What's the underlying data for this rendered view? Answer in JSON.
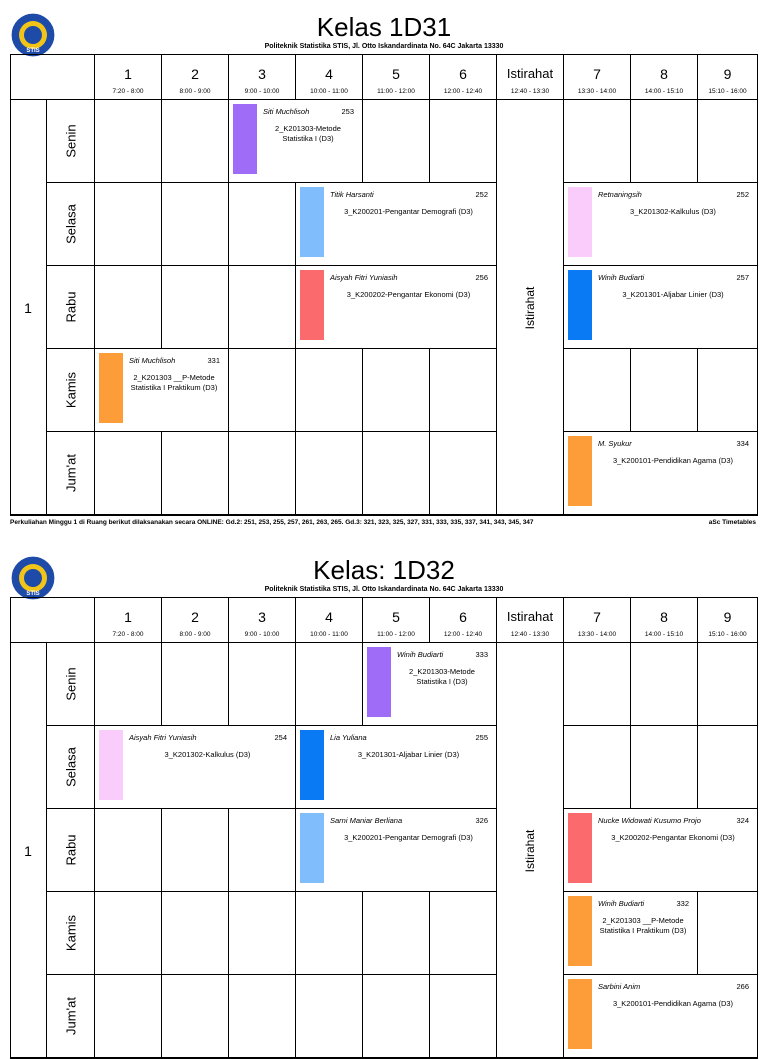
{
  "logo": {
    "text": "STIS",
    "colors": {
      "outer": "#1e4aa8",
      "inner": "#f2c418",
      "ring": "#ffffff"
    }
  },
  "timetables": [
    {
      "title": "Kelas 1D31",
      "subtitle": "Politeknik Statistika STIS, Jl. Otto Iskandardinata No. 64C Jakarta 13330",
      "group": "1",
      "periods": [
        {
          "num": "1",
          "time": "7:20 - 8:00"
        },
        {
          "num": "2",
          "time": "8:00 - 9:00"
        },
        {
          "num": "3",
          "time": "9:00 - 10:00"
        },
        {
          "num": "4",
          "time": "10:00 - 11:00"
        },
        {
          "num": "5",
          "time": "11:00 - 12:00"
        },
        {
          "num": "6",
          "time": "12:00 - 12:40"
        },
        {
          "num": "Istirahat",
          "time": "12:40 - 13:30"
        },
        {
          "num": "7",
          "time": "13:30 - 14:00"
        },
        {
          "num": "8",
          "time": "14:00 - 15:10"
        },
        {
          "num": "9",
          "time": "15:10 - 16:00"
        }
      ],
      "days": [
        "Senin",
        "Selasa",
        "Rabu",
        "Kamis",
        "Jum'at"
      ],
      "break_label": "Istirahat",
      "lessons": [
        {
          "day": 0,
          "start": 2,
          "span": 2,
          "teacher": "Siti Muchlisoh",
          "room": "253",
          "subject": "2_K201303-Metode Statistika I (D3)",
          "color": "#9e6cf6"
        },
        {
          "day": 1,
          "start": 3,
          "span": 3,
          "teacher": "Titik Harsanti",
          "room": "252",
          "subject": "3_K200201-Pengantar Demografi (D3)",
          "color": "#80bdfc"
        },
        {
          "day": 1,
          "start": 7,
          "span": 3,
          "teacher": "Retnaningsih",
          "room": "252",
          "subject": "3_K201302-Kalkulus (D3)",
          "color": "#f9ccfb"
        },
        {
          "day": 2,
          "start": 3,
          "span": 3,
          "teacher": "Aisyah Fitri Yuniasih",
          "room": "256",
          "subject": "3_K200202-Pengantar Ekonomi (D3)",
          "color": "#fb6a6c"
        },
        {
          "day": 2,
          "start": 7,
          "span": 3,
          "teacher": "Winih Budiarti",
          "room": "257",
          "subject": "3_K201301-Aljabar Linier (D3)",
          "color": "#0a7af4"
        },
        {
          "day": 3,
          "start": 0,
          "span": 2,
          "teacher": "Siti Muchlisoh",
          "room": "331",
          "subject": "2_K201303 __P-Metode Statistika I Praktikum (D3)",
          "color": "#fc9d3a"
        },
        {
          "day": 4,
          "start": 7,
          "span": 3,
          "teacher": "M. Syukur",
          "room": "334",
          "subject": "3_K200101-Pendidikan Agama (D3)",
          "color": "#fc9d3a"
        }
      ],
      "footer": "Perkuliahan Minggu 1 di Ruang berikut dilaksanakan secara ONLINE: Gd.2: 251, 253, 255, 257, 261, 263, 265. Gd.3: 321, 323, 325, 327, 331, 333, 335, 337, 341, 343, 345, 347",
      "footer_right": "aSc Timetables"
    },
    {
      "title": "Kelas: 1D32",
      "subtitle": "Politeknik Statistika STIS, Jl. Otto Iskandardinata No. 64C Jakarta 13330",
      "group": "1",
      "periods": [
        {
          "num": "1",
          "time": "7:20 - 8:00"
        },
        {
          "num": "2",
          "time": "8:00 - 9:00"
        },
        {
          "num": "3",
          "time": "9:00 - 10:00"
        },
        {
          "num": "4",
          "time": "10:00 - 11:00"
        },
        {
          "num": "5",
          "time": "11:00 - 12:00"
        },
        {
          "num": "6",
          "time": "12:00 - 12:40"
        },
        {
          "num": "Istirahat",
          "time": "12:40 - 13:30"
        },
        {
          "num": "7",
          "time": "13:30 - 14:00"
        },
        {
          "num": "8",
          "time": "14:00 - 15:10"
        },
        {
          "num": "9",
          "time": "15:10 - 16:00"
        }
      ],
      "days": [
        "Senin",
        "Selasa",
        "Rabu",
        "Kamis",
        "Jum'at"
      ],
      "break_label": "Istirahat",
      "lessons": [
        {
          "day": 0,
          "start": 4,
          "span": 2,
          "teacher": "Winih Budiarti",
          "room": "333",
          "subject": "2_K201303-Metode Statistika I (D3)",
          "color": "#9e6cf6"
        },
        {
          "day": 1,
          "start": 0,
          "span": 3,
          "teacher": "Aisyah Fitri Yuniasih",
          "room": "254",
          "subject": "3_K201302-Kalkulus (D3)",
          "color": "#f9ccfb"
        },
        {
          "day": 1,
          "start": 3,
          "span": 3,
          "teacher": "Lia Yuliana",
          "room": "255",
          "subject": "3_K201301-Aljabar Linier (D3)",
          "color": "#0a7af4"
        },
        {
          "day": 2,
          "start": 3,
          "span": 3,
          "teacher": "Sarni Maniar Berliana",
          "room": "326",
          "subject": "3_K200201-Pengantar Demografi (D3)",
          "color": "#80bdfc"
        },
        {
          "day": 2,
          "start": 7,
          "span": 3,
          "teacher": "Nucke Widowati Kusumo Projo",
          "room": "324",
          "subject": "3_K200202-Pengantar Ekonomi (D3)",
          "color": "#fb6a6c"
        },
        {
          "day": 3,
          "start": 7,
          "span": 2,
          "teacher": "Winih Budiarti",
          "room": "332",
          "subject": "2_K201303 __P-Metode Statistika I Praktikum (D3)",
          "color": "#fc9d3a"
        },
        {
          "day": 4,
          "start": 7,
          "span": 3,
          "teacher": "Sarbini Anim",
          "room": "266",
          "subject": "3_K200101-Pendidikan Agama (D3)",
          "color": "#fc9d3a"
        }
      ]
    }
  ]
}
